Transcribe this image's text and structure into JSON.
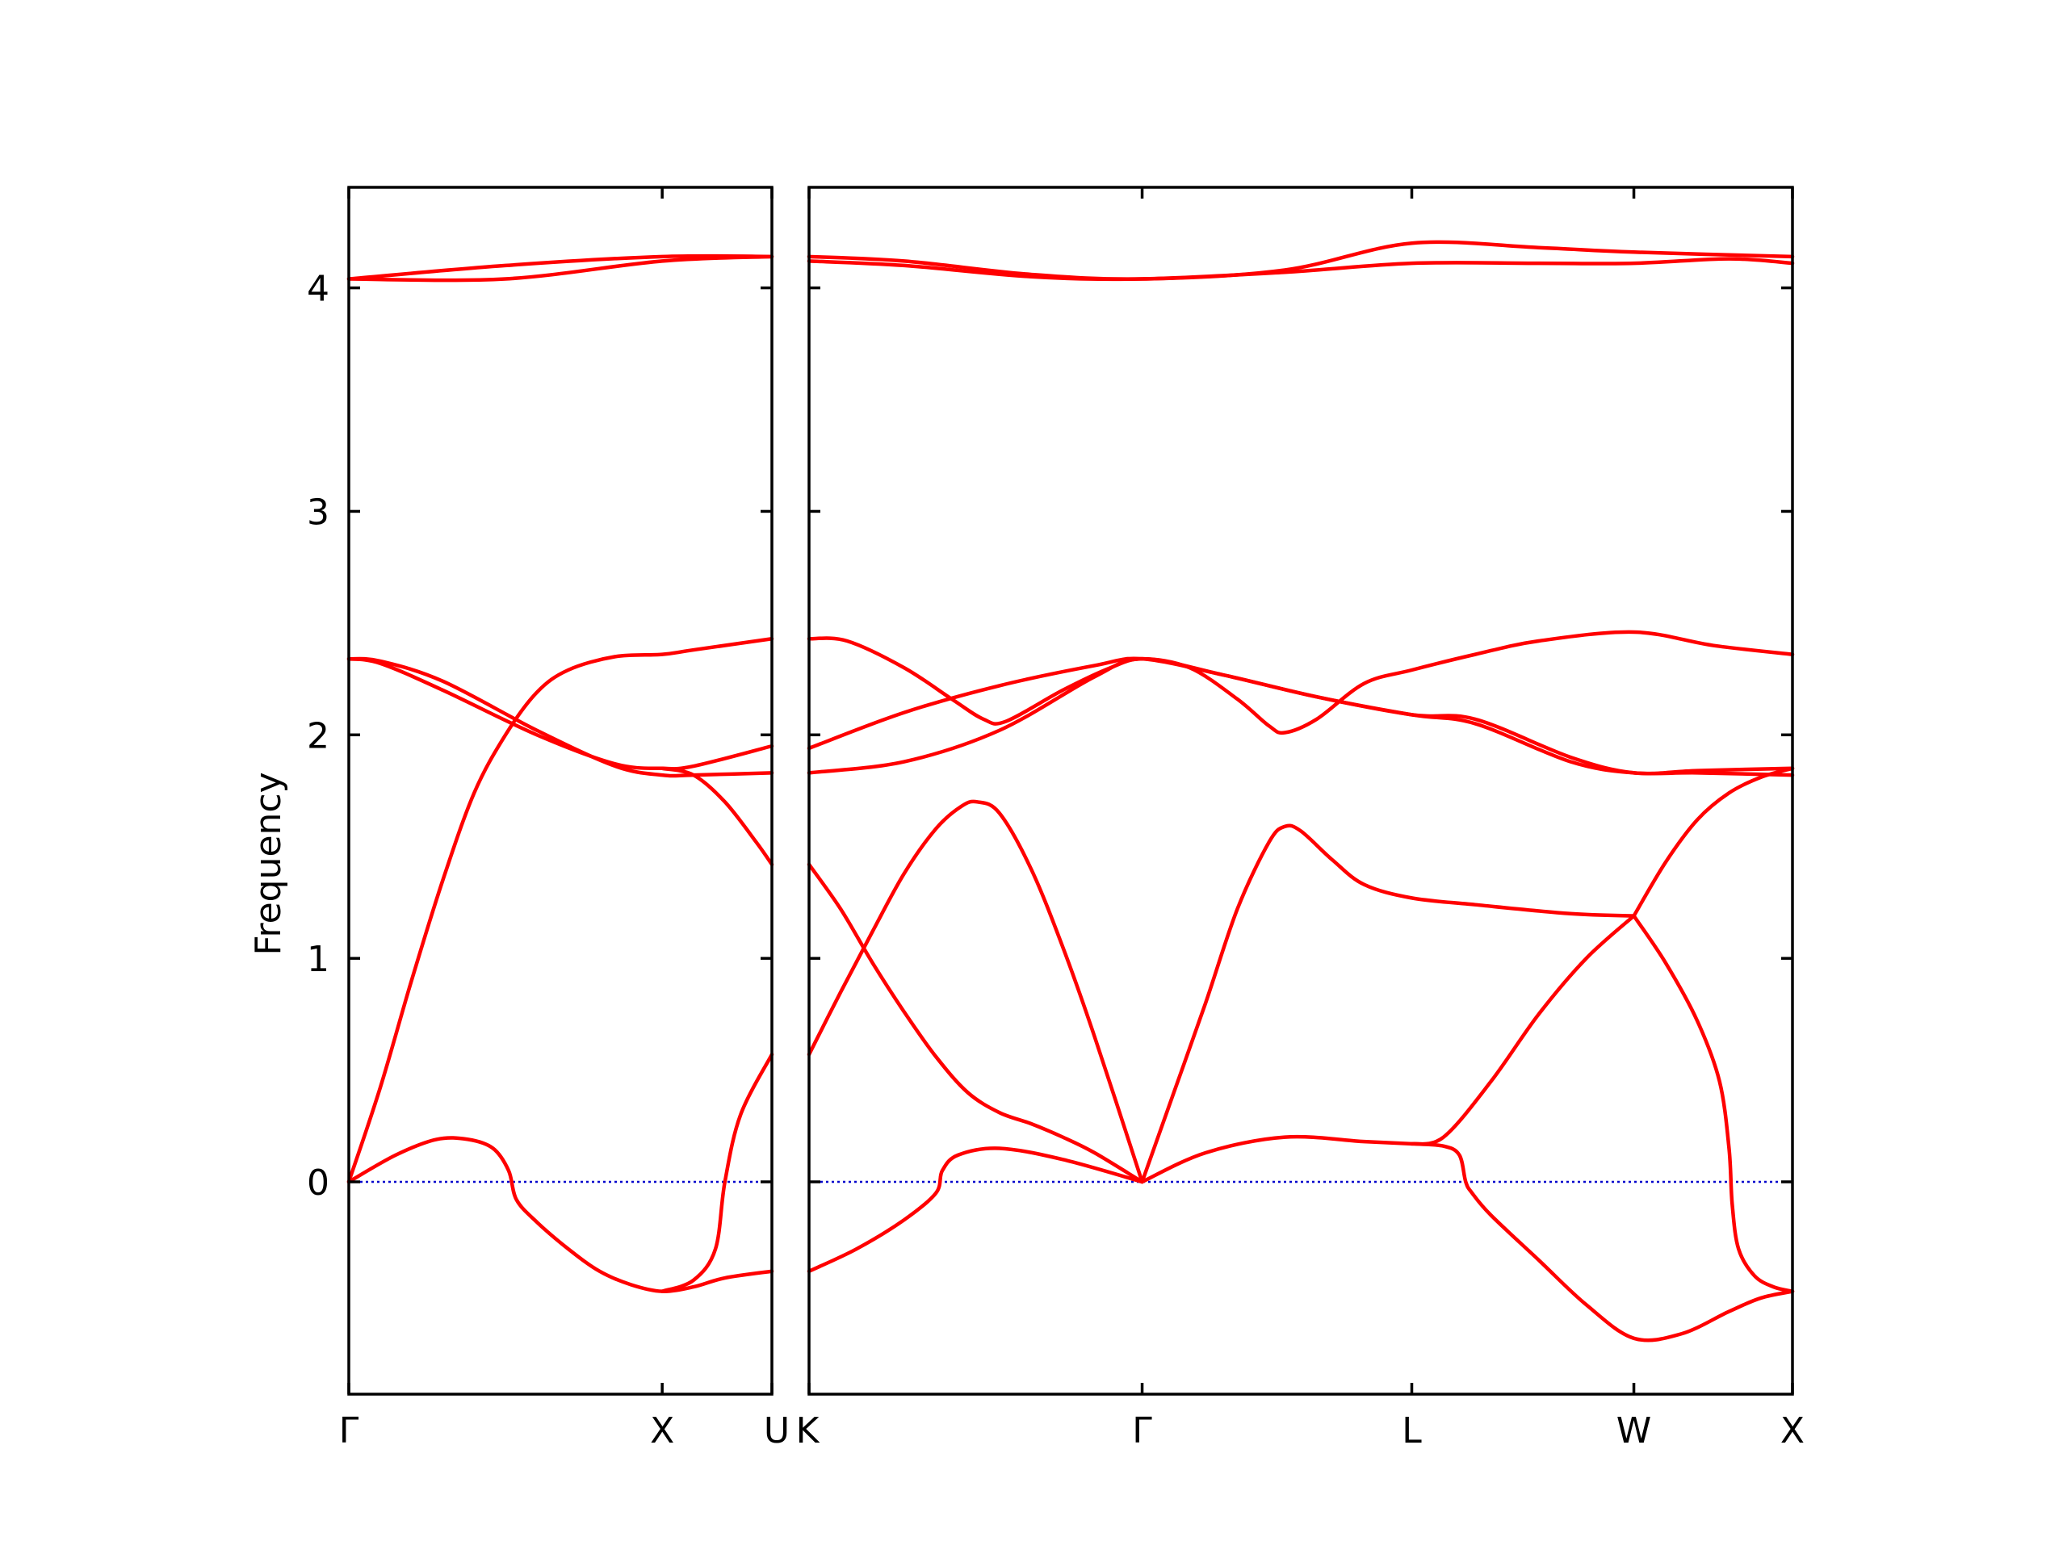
{
  "chart_data": {
    "type": "line",
    "title": "",
    "ylabel": "Frequency",
    "ylim": [
      -0.95,
      4.45
    ],
    "yticks": [
      "0",
      "1",
      "2",
      "3",
      "4"
    ],
    "ytick_values": [
      0,
      1,
      2,
      3,
      4
    ],
    "grid": false,
    "legend": "none",
    "colors": {
      "bands": "#ff0000",
      "zero_line": "#0000cc",
      "frame": "#000000"
    },
    "panels": [
      {
        "name": "gamma-x-u",
        "xlim": [
          0,
          1.35
        ],
        "xticks": [
          {
            "x": 0,
            "label": "Γ"
          },
          {
            "x": 1.0,
            "label": "X"
          },
          {
            "x": 1.35,
            "label": "U"
          }
        ],
        "bands": [
          [
            [
              0,
              4.04
            ],
            [
              0.5,
              4.04
            ],
            [
              1.0,
              4.12
            ],
            [
              1.35,
              4.14
            ]
          ],
          [
            [
              0,
              4.04
            ],
            [
              0.5,
              4.1
            ],
            [
              1.0,
              4.14
            ],
            [
              1.35,
              4.14
            ]
          ],
          [
            [
              0,
              2.34
            ],
            [
              0.1,
              2.32
            ],
            [
              0.3,
              2.2
            ],
            [
              0.6,
              2.0
            ],
            [
              0.85,
              1.87
            ],
            [
              1.0,
              1.85
            ],
            [
              1.1,
              1.86
            ],
            [
              1.35,
              1.95
            ]
          ],
          [
            [
              0,
              2.34
            ],
            [
              0.1,
              2.33
            ],
            [
              0.3,
              2.24
            ],
            [
              0.6,
              2.02
            ],
            [
              0.85,
              1.86
            ],
            [
              1.0,
              1.82
            ],
            [
              1.1,
              1.82
            ],
            [
              1.35,
              1.83
            ]
          ],
          [
            [
              0,
              0.0
            ],
            [
              0.1,
              0.42
            ],
            [
              0.2,
              0.9
            ],
            [
              0.3,
              1.35
            ],
            [
              0.4,
              1.74
            ],
            [
              0.5,
              2.0
            ],
            [
              0.6,
              2.19
            ],
            [
              0.7,
              2.29
            ],
            [
              0.85,
              2.35
            ],
            [
              1.0,
              2.36
            ],
            [
              1.1,
              2.38
            ],
            [
              1.35,
              2.43
            ]
          ],
          [
            [
              0,
              0.0
            ],
            [
              0.15,
              0.12
            ],
            [
              0.28,
              0.19
            ],
            [
              0.38,
              0.19
            ],
            [
              0.46,
              0.15
            ],
            [
              0.51,
              0.05
            ],
            [
              0.535,
              -0.08
            ],
            [
              0.6,
              -0.18
            ],
            [
              0.7,
              -0.3
            ],
            [
              0.8,
              -0.4
            ],
            [
              0.9,
              -0.46
            ],
            [
              1.0,
              -0.49
            ],
            [
              1.1,
              -0.47
            ],
            [
              1.2,
              -0.43
            ],
            [
              1.35,
              -0.4
            ]
          ],
          [
            [
              1.0,
              -0.49
            ],
            [
              1.1,
              -0.44
            ],
            [
              1.17,
              -0.3
            ],
            [
              1.2,
              0.0
            ],
            [
              1.25,
              0.3
            ],
            [
              1.35,
              0.57
            ]
          ],
          [
            [
              1.0,
              1.85
            ],
            [
              1.1,
              1.82
            ],
            [
              1.2,
              1.7
            ],
            [
              1.3,
              1.52
            ],
            [
              1.35,
              1.42
            ]
          ]
        ]
      },
      {
        "name": "k-gamma-l-w-x",
        "xlim": [
          0,
          3.1
        ],
        "xticks": [
          {
            "x": 0,
            "label": "K"
          },
          {
            "x": 1.05,
            "label": "Γ"
          },
          {
            "x": 1.9,
            "label": "L"
          },
          {
            "x": 2.6,
            "label": "W"
          },
          {
            "x": 3.1,
            "label": "X"
          }
        ],
        "bands": [
          [
            [
              0,
              4.14
            ],
            [
              0.3,
              4.12
            ],
            [
              0.7,
              4.06
            ],
            [
              1.05,
              4.04
            ],
            [
              1.5,
              4.08
            ],
            [
              1.9,
              4.2
            ],
            [
              2.3,
              4.18
            ],
            [
              2.6,
              4.16
            ],
            [
              3.1,
              4.14
            ]
          ],
          [
            [
              0,
              4.12
            ],
            [
              0.3,
              4.1
            ],
            [
              0.7,
              4.05
            ],
            [
              1.05,
              4.04
            ],
            [
              1.5,
              4.07
            ],
            [
              1.9,
              4.11
            ],
            [
              2.3,
              4.11
            ],
            [
              2.6,
              4.11
            ],
            [
              2.9,
              4.13
            ],
            [
              3.1,
              4.11
            ]
          ],
          [
            [
              0,
              2.43
            ],
            [
              0.12,
              2.42
            ],
            [
              0.3,
              2.3
            ],
            [
              0.45,
              2.16
            ],
            [
              0.55,
              2.07
            ],
            [
              0.62,
              2.06
            ],
            [
              0.8,
              2.2
            ],
            [
              0.95,
              2.3
            ],
            [
              1.05,
              2.34
            ],
            [
              1.2,
              2.3
            ],
            [
              1.35,
              2.16
            ],
            [
              1.45,
              2.04
            ],
            [
              1.5,
              2.01
            ],
            [
              1.6,
              2.07
            ],
            [
              1.75,
              2.23
            ],
            [
              1.9,
              2.29
            ],
            [
              2.1,
              2.36
            ],
            [
              2.3,
              2.42
            ],
            [
              2.6,
              2.46
            ],
            [
              2.85,
              2.4
            ],
            [
              3.1,
              2.36
            ]
          ],
          [
            [
              0,
              1.94
            ],
            [
              0.3,
              2.1
            ],
            [
              0.6,
              2.22
            ],
            [
              0.9,
              2.31
            ],
            [
              1.05,
              2.34
            ],
            [
              1.3,
              2.27
            ],
            [
              1.6,
              2.17
            ],
            [
              1.9,
              2.09
            ],
            [
              2.1,
              2.05
            ],
            [
              2.4,
              1.88
            ],
            [
              2.6,
              1.83
            ],
            [
              2.8,
              1.83
            ],
            [
              3.1,
              1.82
            ]
          ],
          [
            [
              0,
              1.83
            ],
            [
              0.3,
              1.88
            ],
            [
              0.6,
              2.02
            ],
            [
              0.9,
              2.26
            ],
            [
              1.05,
              2.34
            ],
            [
              1.3,
              2.27
            ],
            [
              1.6,
              2.17
            ],
            [
              1.9,
              2.09
            ],
            [
              2.1,
              2.07
            ],
            [
              2.4,
              1.9
            ],
            [
              2.6,
              1.83
            ],
            [
              2.8,
              1.84
            ],
            [
              3.1,
              1.85
            ]
          ],
          [
            [
              0,
              1.42
            ],
            [
              0.1,
              1.22
            ],
            [
              0.2,
              0.98
            ],
            [
              0.3,
              0.76
            ],
            [
              0.4,
              0.56
            ],
            [
              0.5,
              0.4
            ],
            [
              0.6,
              0.31
            ],
            [
              0.7,
              0.26
            ],
            [
              0.8,
              0.2
            ],
            [
              0.9,
              0.13
            ],
            [
              1.05,
              0.0
            ]
          ],
          [
            [
              0,
              0.57
            ],
            [
              0.1,
              0.85
            ],
            [
              0.2,
              1.12
            ],
            [
              0.3,
              1.38
            ],
            [
              0.4,
              1.58
            ],
            [
              0.48,
              1.68
            ],
            [
              0.53,
              1.7
            ],
            [
              0.6,
              1.65
            ],
            [
              0.7,
              1.4
            ],
            [
              0.8,
              1.05
            ],
            [
              0.9,
              0.65
            ],
            [
              1.05,
              0.0
            ]
          ],
          [
            [
              0,
              -0.4
            ],
            [
              0.15,
              -0.3
            ],
            [
              0.3,
              -0.17
            ],
            [
              0.4,
              -0.05
            ],
            [
              0.42,
              0.05
            ],
            [
              0.47,
              0.12
            ],
            [
              0.6,
              0.15
            ],
            [
              0.8,
              0.1
            ],
            [
              1.05,
              0.0
            ]
          ],
          [
            [
              1.05,
              0.0
            ],
            [
              1.15,
              0.4
            ],
            [
              1.25,
              0.8
            ],
            [
              1.35,
              1.22
            ],
            [
              1.45,
              1.52
            ],
            [
              1.5,
              1.59
            ],
            [
              1.55,
              1.57
            ],
            [
              1.65,
              1.44
            ],
            [
              1.75,
              1.33
            ],
            [
              1.9,
              1.27
            ],
            [
              2.1,
              1.24
            ],
            [
              2.4,
              1.2
            ],
            [
              2.6,
              1.19
            ]
          ],
          [
            [
              1.05,
              0.0
            ],
            [
              1.25,
              0.13
            ],
            [
              1.5,
              0.2
            ],
            [
              1.75,
              0.18
            ],
            [
              1.9,
              0.17
            ],
            [
              2.0,
              0.16
            ],
            [
              2.05,
              0.12
            ],
            [
              2.07,
              0.0
            ],
            [
              2.09,
              -0.05
            ],
            [
              2.15,
              -0.15
            ],
            [
              2.3,
              -0.35
            ],
            [
              2.45,
              -0.55
            ],
            [
              2.6,
              -0.7
            ],
            [
              2.75,
              -0.68
            ],
            [
              2.9,
              -0.58
            ],
            [
              3.0,
              -0.52
            ],
            [
              3.1,
              -0.49
            ]
          ],
          [
            [
              1.9,
              0.17
            ],
            [
              2.0,
              0.2
            ],
            [
              2.15,
              0.45
            ],
            [
              2.3,
              0.75
            ],
            [
              2.45,
              1.0
            ],
            [
              2.6,
              1.19
            ]
          ],
          [
            [
              2.6,
              1.19
            ],
            [
              2.7,
              1.43
            ],
            [
              2.8,
              1.62
            ],
            [
              2.9,
              1.74
            ],
            [
              3.0,
              1.81
            ],
            [
              3.1,
              1.85
            ]
          ],
          [
            [
              2.6,
              1.19
            ],
            [
              2.7,
              0.98
            ],
            [
              2.8,
              0.72
            ],
            [
              2.87,
              0.45
            ],
            [
              2.9,
              0.15
            ],
            [
              2.91,
              -0.1
            ],
            [
              2.93,
              -0.3
            ],
            [
              2.98,
              -0.42
            ],
            [
              3.04,
              -0.47
            ],
            [
              3.1,
              -0.49
            ]
          ]
        ]
      }
    ]
  }
}
